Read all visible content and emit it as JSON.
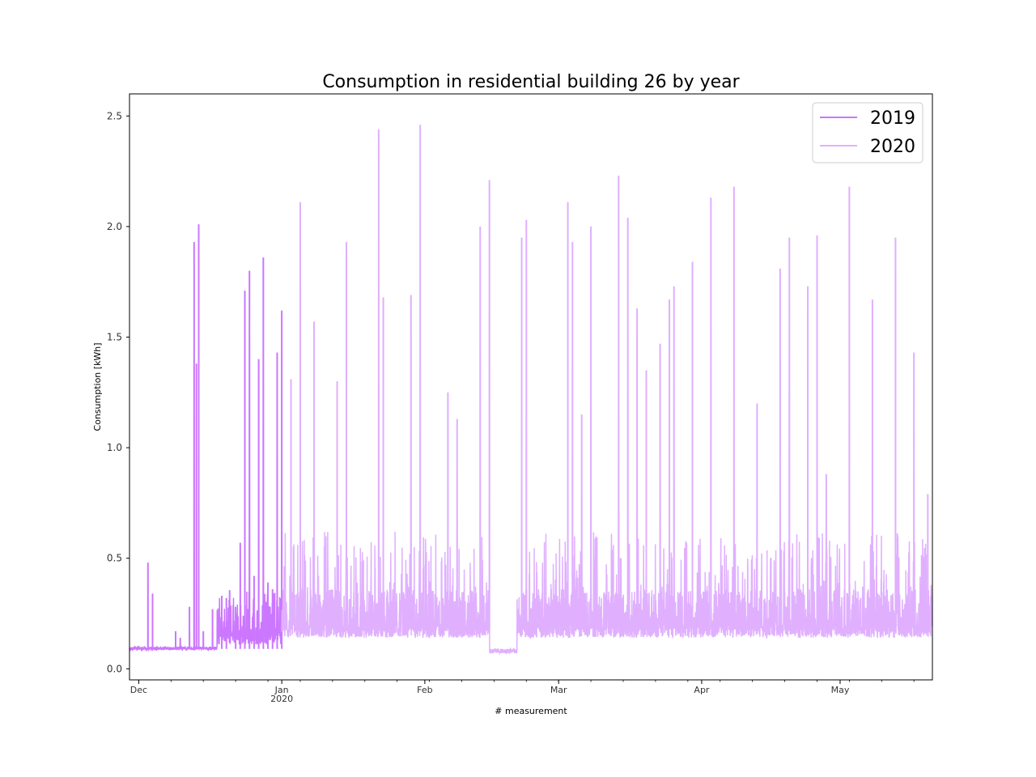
{
  "chart_data": {
    "type": "line",
    "title": "Consumption in residential building 26 by year",
    "xlabel": "# measurement",
    "ylabel": "Consumption [kWh]",
    "ylim": [
      -0.05,
      2.6
    ],
    "xlim": [
      "2019-11-29",
      "2020-05-21"
    ],
    "y_ticks": [
      0.0,
      0.5,
      1.0,
      1.5,
      2.0,
      2.5
    ],
    "y_tick_labels": [
      "0.0",
      "0.5",
      "1.0",
      "1.5",
      "2.0",
      "2.5"
    ],
    "x_ticks": [
      {
        "date": "2019-12-01",
        "label": "Dec",
        "sublabel": ""
      },
      {
        "date": "2020-01-01",
        "label": "Jan",
        "sublabel": "2020"
      },
      {
        "date": "2020-02-01",
        "label": "Feb",
        "sublabel": ""
      },
      {
        "date": "2020-03-01",
        "label": "Mar",
        "sublabel": ""
      },
      {
        "date": "2020-04-01",
        "label": "Apr",
        "sublabel": ""
      },
      {
        "date": "2020-05-01",
        "label": "May",
        "sublabel": ""
      }
    ],
    "legend": {
      "position": "top-right",
      "entries": [
        "2019",
        "2020"
      ]
    },
    "series": [
      {
        "name": "2019",
        "color": "#cc77ff",
        "baseline_range": [
          "2019-11-29",
          "2020-01-01"
        ],
        "baseline_level": 0.09,
        "peaks": [
          {
            "date": "2019-12-03",
            "value": 0.48
          },
          {
            "date": "2019-12-04",
            "value": 0.34
          },
          {
            "date": "2019-12-09",
            "value": 0.17
          },
          {
            "date": "2019-12-10",
            "value": 0.14
          },
          {
            "date": "2019-12-12",
            "value": 0.28
          },
          {
            "date": "2019-12-13",
            "value": 1.93
          },
          {
            "date": "2019-12-13.5",
            "value": 1.38
          },
          {
            "date": "2019-12-14",
            "value": 2.01
          },
          {
            "date": "2019-12-15",
            "value": 0.17
          },
          {
            "date": "2019-12-17",
            "value": 0.27
          },
          {
            "date": "2019-12-19",
            "value": 0.33
          },
          {
            "date": "2019-12-20",
            "value": 0.32
          },
          {
            "date": "2019-12-22",
            "value": 0.28
          },
          {
            "date": "2019-12-23",
            "value": 0.57
          },
          {
            "date": "2019-12-24",
            "value": 1.71
          },
          {
            "date": "2019-12-25",
            "value": 1.8
          },
          {
            "date": "2019-12-26",
            "value": 0.42
          },
          {
            "date": "2019-12-27",
            "value": 1.4
          },
          {
            "date": "2019-12-28",
            "value": 1.86
          },
          {
            "date": "2019-12-29",
            "value": 0.39
          },
          {
            "date": "2019-12-30",
            "value": 0.36
          },
          {
            "date": "2019-12-31",
            "value": 1.43
          },
          {
            "date": "2020-01-01",
            "value": 1.62
          }
        ]
      },
      {
        "name": "2020",
        "color": "#e0b0ff",
        "baseline_range": [
          "2020-01-01",
          "2020-05-21"
        ],
        "baseline_level": 0.18,
        "low_period": {
          "start": "2020-02-15",
          "end": "2020-02-21",
          "level": 0.07
        },
        "peaks": [
          {
            "date": "2020-01-03",
            "value": 1.31
          },
          {
            "date": "2020-01-05",
            "value": 2.11
          },
          {
            "date": "2020-01-08",
            "value": 1.57
          },
          {
            "date": "2020-01-13",
            "value": 1.3
          },
          {
            "date": "2020-01-15",
            "value": 1.93
          },
          {
            "date": "2020-01-22",
            "value": 2.44
          },
          {
            "date": "2020-01-23",
            "value": 1.68
          },
          {
            "date": "2020-01-29",
            "value": 1.69
          },
          {
            "date": "2020-01-31",
            "value": 2.46
          },
          {
            "date": "2020-02-06",
            "value": 1.25
          },
          {
            "date": "2020-02-08",
            "value": 1.13
          },
          {
            "date": "2020-02-13",
            "value": 2.0
          },
          {
            "date": "2020-02-15",
            "value": 2.21
          },
          {
            "date": "2020-02-22",
            "value": 1.95
          },
          {
            "date": "2020-02-23",
            "value": 2.03
          },
          {
            "date": "2020-03-03",
            "value": 2.11
          },
          {
            "date": "2020-03-04",
            "value": 1.93
          },
          {
            "date": "2020-03-06",
            "value": 1.15
          },
          {
            "date": "2020-03-08",
            "value": 2.0
          },
          {
            "date": "2020-03-14",
            "value": 2.23
          },
          {
            "date": "2020-03-16",
            "value": 2.04
          },
          {
            "date": "2020-03-18",
            "value": 1.63
          },
          {
            "date": "2020-03-20",
            "value": 1.35
          },
          {
            "date": "2020-03-23",
            "value": 1.47
          },
          {
            "date": "2020-03-25",
            "value": 1.67
          },
          {
            "date": "2020-03-26",
            "value": 1.73
          },
          {
            "date": "2020-03-30",
            "value": 1.84
          },
          {
            "date": "2020-04-03",
            "value": 2.13
          },
          {
            "date": "2020-04-08",
            "value": 2.18
          },
          {
            "date": "2020-04-13",
            "value": 1.2
          },
          {
            "date": "2020-04-18",
            "value": 1.81
          },
          {
            "date": "2020-04-20",
            "value": 1.95
          },
          {
            "date": "2020-04-24",
            "value": 1.73
          },
          {
            "date": "2020-04-26",
            "value": 1.96
          },
          {
            "date": "2020-04-28",
            "value": 0.88
          },
          {
            "date": "2020-05-03",
            "value": 2.18
          },
          {
            "date": "2020-05-08",
            "value": 1.67
          },
          {
            "date": "2020-05-13",
            "value": 1.95
          },
          {
            "date": "2020-05-17",
            "value": 1.43
          },
          {
            "date": "2020-05-20",
            "value": 0.79
          }
        ]
      }
    ]
  }
}
